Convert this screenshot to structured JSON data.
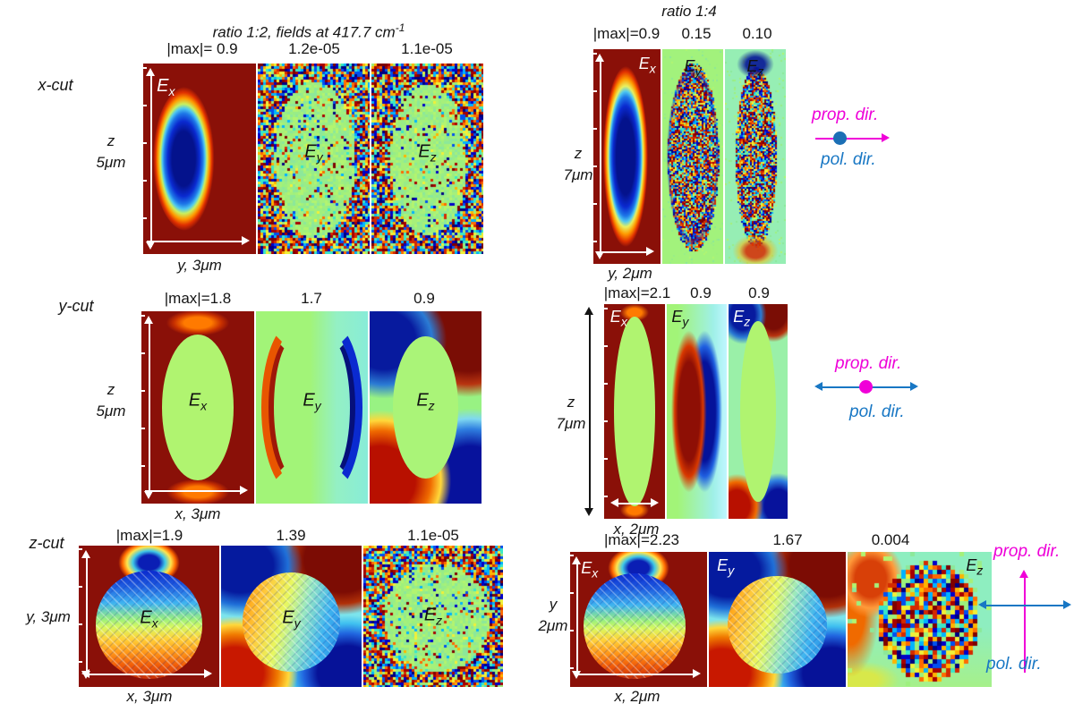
{
  "title_left": {
    "text": "ratio 1:2, fields at 417.7 cm",
    "sup": "-1"
  },
  "title_right": "ratio 1:4",
  "legend": {
    "prop": "prop. dir.",
    "pol": "pol. dir."
  },
  "fields": {
    "x": {
      "base": "E",
      "sub": "x"
    },
    "y": {
      "base": "E",
      "sub": "y"
    },
    "z": {
      "base": "E",
      "sub": "z"
    }
  },
  "groups": {
    "L1": {
      "cut": "x-cut",
      "max": [
        "|max|= 0.9",
        "1.2e-05",
        "1.1e-05"
      ],
      "axis": "y, 3μm",
      "side1": "z",
      "side2": "5μm"
    },
    "R1": {
      "max": [
        "|max|=0.9",
        "0.15",
        "0.10"
      ],
      "axis": "y, 2μm",
      "side1": "z",
      "side2": "7μm"
    },
    "L2": {
      "cut": "y-cut",
      "max": [
        "|max|=1.8",
        "1.7",
        "0.9"
      ],
      "axis": "x, 3μm",
      "side1": "z",
      "side2": "5μm"
    },
    "R2": {
      "max": [
        "|max|=2.1",
        "0.9",
        "0.9"
      ],
      "axis": "x, 2μm",
      "side1": "z",
      "side2": "7μm"
    },
    "L3": {
      "cut": "z-cut",
      "max": [
        "|max|=1.9",
        "1.39",
        "1.1e-05"
      ],
      "axis": "x, 3μm",
      "side1": "y, 3μm",
      "side2": ""
    },
    "R3": {
      "max": [
        "|max|=2.23",
        "1.67",
        "0.004"
      ],
      "axis": "x, 2μm",
      "side1": "y",
      "side2": "2μm"
    }
  },
  "colors": {
    "dark_red": "#8a1008",
    "pale_green": "#a2f27c",
    "magenta": "#f000d8",
    "blue": "#1877c4",
    "pol_dot_blue": "#1b6fb5",
    "axis_arrow_white": "#ffffff",
    "outer_arrow_black": "#151515"
  }
}
